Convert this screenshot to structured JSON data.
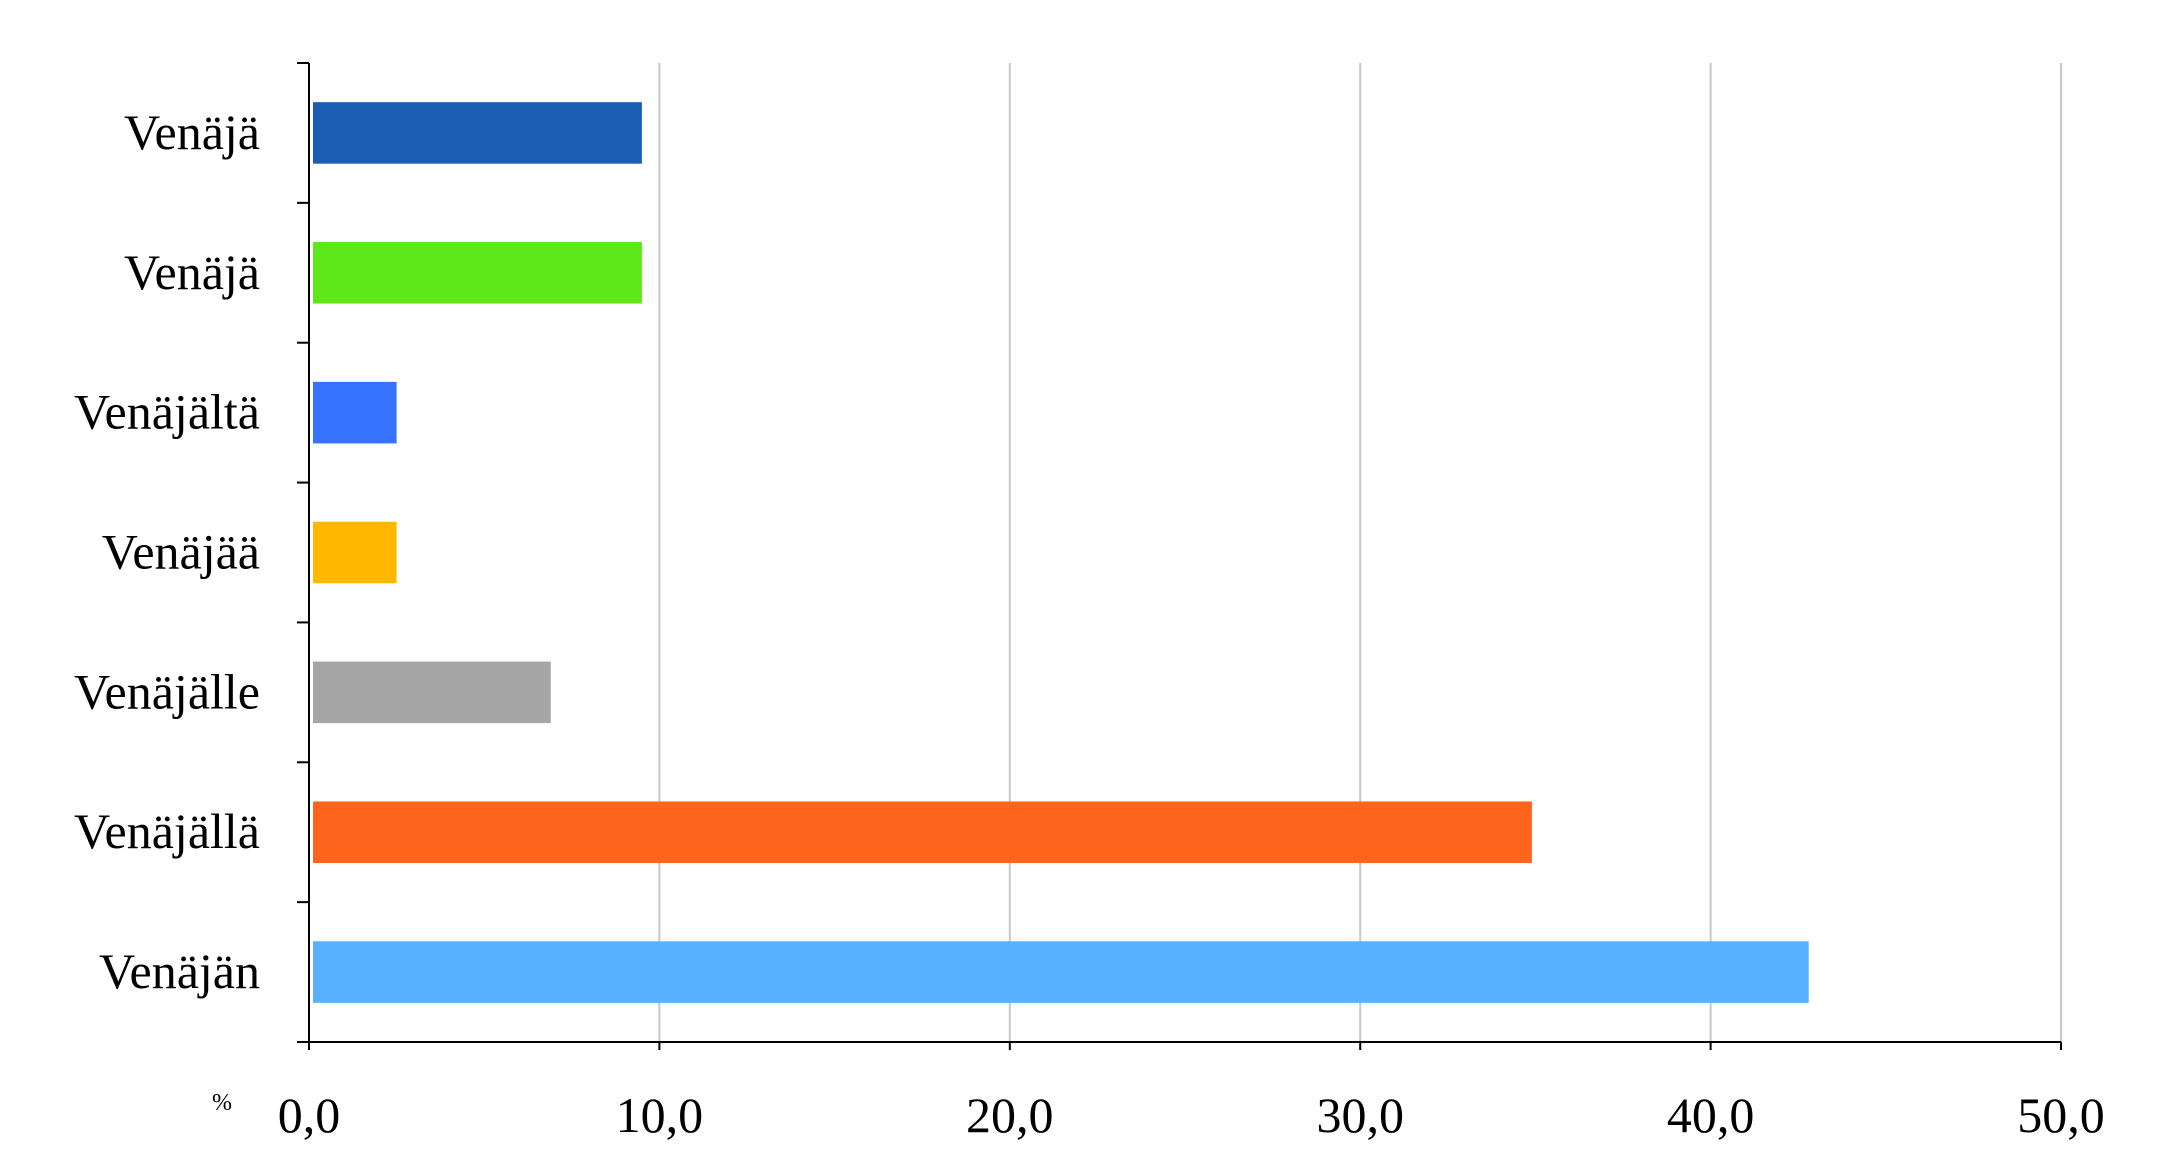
{
  "chart_data": {
    "type": "bar",
    "orientation": "horizontal",
    "categories": [
      "Venäjä",
      "Venäjä",
      "Venäjältä",
      "Venäjää",
      "Venäjälle",
      "Venäjällä",
      "Venäjän"
    ],
    "values": [
      9.5,
      9.5,
      2.5,
      2.5,
      6.9,
      34.9,
      42.8
    ],
    "colors": [
      "#1a5fb4",
      "#5ee81a",
      "#3673fe",
      "#ffb700",
      "#a6a6a6",
      "#ff641c",
      "#57b1fe"
    ],
    "xlim": [
      0,
      50
    ],
    "xticks": [
      "0,0",
      "10,0",
      "20,0",
      "30,0",
      "40,0",
      "50,0"
    ],
    "xtick_values": [
      0,
      10,
      20,
      30,
      40,
      50
    ],
    "unit_label": "%",
    "grid": "vertical",
    "legend": "none",
    "title": "",
    "xlabel": "",
    "ylabel": ""
  }
}
